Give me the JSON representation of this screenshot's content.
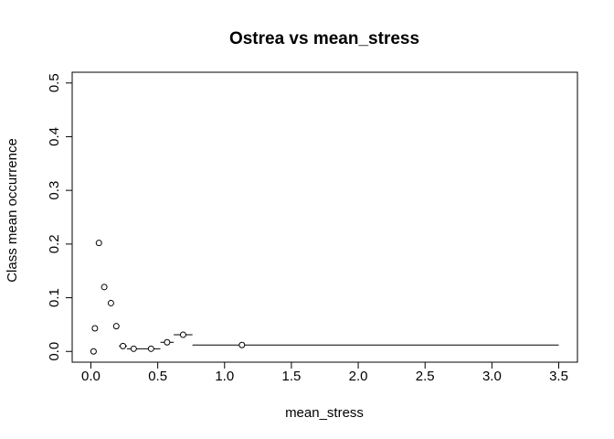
{
  "chart_data": {
    "type": "scatter",
    "title": "Ostrea vs mean_stress",
    "xlabel": "mean_stress",
    "ylabel": "Class mean occurrence",
    "xlim": [
      -0.14,
      3.64
    ],
    "ylim": [
      -0.02,
      0.52
    ],
    "x_ticks": [
      "0.0",
      "0.5",
      "1.0",
      "1.5",
      "2.0",
      "2.5",
      "3.0",
      "3.5"
    ],
    "y_ticks": [
      "0.0",
      "0.1",
      "0.2",
      "0.3",
      "0.4",
      "0.5"
    ],
    "grid": false,
    "legend": "none",
    "points": [
      {
        "x": 0.02,
        "y": 0.0,
        "x_min": 0.0,
        "x_max": 0.03
      },
      {
        "x": 0.03,
        "y": 0.043,
        "x_min": 0.025,
        "x_max": 0.04
      },
      {
        "x": 0.06,
        "y": 0.202,
        "x_min": 0.05,
        "x_max": 0.07
      },
      {
        "x": 0.1,
        "y": 0.12,
        "x_min": 0.09,
        "x_max": 0.11
      },
      {
        "x": 0.15,
        "y": 0.09,
        "x_min": 0.13,
        "x_max": 0.17
      },
      {
        "x": 0.19,
        "y": 0.047,
        "x_min": 0.17,
        "x_max": 0.21
      },
      {
        "x": 0.24,
        "y": 0.01,
        "x_min": 0.21,
        "x_max": 0.27
      },
      {
        "x": 0.32,
        "y": 0.005,
        "x_min": 0.27,
        "x_max": 0.38
      },
      {
        "x": 0.45,
        "y": 0.005,
        "x_min": 0.38,
        "x_max": 0.52
      },
      {
        "x": 0.57,
        "y": 0.017,
        "x_min": 0.52,
        "x_max": 0.62
      },
      {
        "x": 0.69,
        "y": 0.031,
        "x_min": 0.62,
        "x_max": 0.76
      },
      {
        "x": 1.13,
        "y": 0.012,
        "x_min": 0.76,
        "x_max": 3.5
      }
    ],
    "colors": {
      "marker": "#000000",
      "line": "#000000",
      "background": "#ffffff"
    }
  }
}
